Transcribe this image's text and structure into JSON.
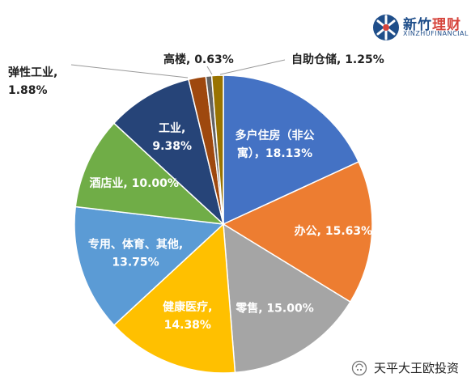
{
  "chart_data": {
    "type": "pie",
    "slices": [
      {
        "label": "多户住房（非公寓），18.13%",
        "value": 18.13,
        "color": "#4472c4",
        "text_lines": [
          "多户住房（非公",
          "寓），18.13%"
        ]
      },
      {
        "label": "办公, 15.63%",
        "value": 15.63,
        "color": "#ed7d31",
        "text_lines": [
          "办公, 15.63%"
        ]
      },
      {
        "label": "零售, 15.00%",
        "value": 15.0,
        "color": "#a5a5a5",
        "text_lines": [
          "零售, 15.00%"
        ]
      },
      {
        "label": "健康医疗, 14.38%",
        "value": 14.38,
        "color": "#ffc000",
        "text_lines": [
          "健康医疗,",
          "14.38%"
        ]
      },
      {
        "label": "专用、体育、其他, 13.75%",
        "value": 13.75,
        "color": "#5b9bd5",
        "text_lines": [
          "专用、体育、其他,",
          "13.75%"
        ]
      },
      {
        "label": "酒店业, 10.00%",
        "value": 10.0,
        "color": "#70ad47",
        "text_lines": [
          "酒店业, 10.00%"
        ]
      },
      {
        "label": "工业, 9.38%",
        "value": 9.38,
        "color": "#264478",
        "text_lines": [
          "工业,",
          "9.38%"
        ]
      },
      {
        "label": "弹性工业, 1.88%",
        "value": 1.88,
        "color": "#9e480e",
        "text_lines": [
          "弹性工业,",
          "1.88%"
        ]
      },
      {
        "label": "高楼, 0.63%",
        "value": 0.63,
        "color": "#636363",
        "text_lines": [
          "高楼, 0.63%"
        ]
      },
      {
        "label": "自助仓储, 1.25%",
        "value": 1.25,
        "color": "#997300",
        "text_lines": [
          "自助仓储, 1.25%"
        ]
      }
    ]
  },
  "branding": {
    "logo_main": "新竹",
    "logo_accent": "理财",
    "logo_sub": "XINZHUFINANCIAL",
    "watermark": "天平大王欧投资"
  }
}
